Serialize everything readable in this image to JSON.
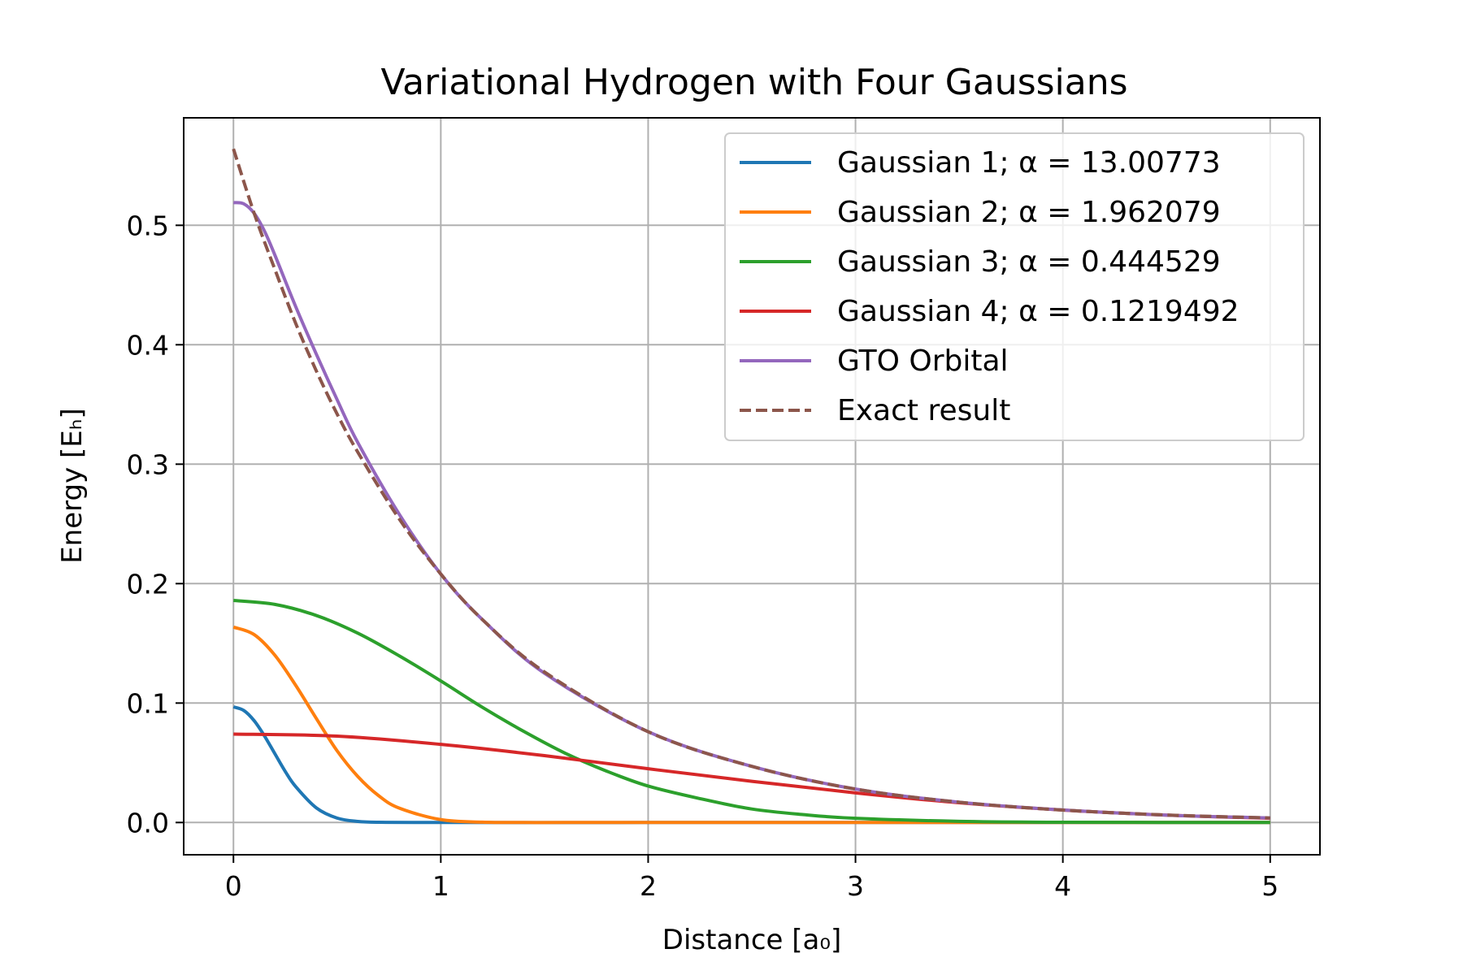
{
  "chart_data": {
    "type": "line",
    "title": "Variational Hydrogen with Four Gaussians",
    "xlabel": "Distance [a₀]",
    "ylabel": "Energy [Eₕ]",
    "xlim": [
      -0.24,
      5.24
    ],
    "ylim": [
      -0.027,
      0.59
    ],
    "xticks": [
      0,
      1,
      2,
      3,
      4,
      5
    ],
    "xtick_labels": [
      "0",
      "1",
      "2",
      "3",
      "4",
      "5"
    ],
    "yticks": [
      0.0,
      0.1,
      0.2,
      0.3,
      0.4,
      0.5
    ],
    "ytick_labels": [
      "0.0",
      "0.1",
      "0.2",
      "0.3",
      "0.4",
      "0.5"
    ],
    "grid": true,
    "legend_position": "top-right",
    "x_range": [
      0,
      5
    ],
    "series": [
      {
        "name": "Gaussian 1; α = 13.00773",
        "color": "#1f77b4",
        "style": "solid",
        "x": [
          0,
          0.05,
          0.1,
          0.15,
          0.2,
          0.25,
          0.3,
          0.4,
          0.5,
          0.6,
          0.7,
          1.0,
          2.0,
          3.0,
          4.0,
          5.0
        ],
        "y": [
          0.0968,
          0.0938,
          0.0852,
          0.0724,
          0.0575,
          0.0427,
          0.0301,
          0.0122,
          0.0037,
          0.0009,
          0.0002,
          0.0,
          0.0,
          0.0,
          0.0,
          0.0
        ]
      },
      {
        "name": "Gaussian 2; α = 1.962079",
        "color": "#ff7f0e",
        "style": "solid",
        "x": [
          0,
          0.1,
          0.2,
          0.3,
          0.4,
          0.5,
          0.6,
          0.7,
          0.8,
          1.0,
          1.2,
          1.4,
          1.6,
          2.0,
          3.0,
          4.0,
          5.0
        ],
        "y": [
          0.1636,
          0.1573,
          0.14,
          0.1149,
          0.087,
          0.06,
          0.0385,
          0.0225,
          0.012,
          0.0024,
          0.0003,
          0.0,
          0.0,
          0.0,
          0.0,
          0.0,
          0.0
        ]
      },
      {
        "name": "Gaussian 3; α = 0.444529",
        "color": "#2ca02c",
        "style": "solid",
        "x": [
          0,
          0.2,
          0.4,
          0.6,
          0.8,
          1.0,
          1.2,
          1.4,
          1.6,
          1.8,
          2.0,
          2.25,
          2.5,
          2.75,
          3.0,
          3.5,
          4.0,
          5.0
        ],
        "y": [
          0.1859,
          0.1826,
          0.1733,
          0.1585,
          0.1395,
          0.1185,
          0.0965,
          0.0763,
          0.058,
          0.043,
          0.0305,
          0.02,
          0.0113,
          0.0066,
          0.0035,
          0.001,
          0.0002,
          0.0
        ]
      },
      {
        "name": "Gaussian 4; α = 0.1219492",
        "color": "#d62728",
        "style": "solid",
        "x": [
          0,
          0.5,
          1.0,
          1.5,
          2.0,
          2.5,
          3.0,
          3.5,
          4.0,
          4.5,
          5.0
        ],
        "y": [
          0.074,
          0.0723,
          0.0654,
          0.056,
          0.045,
          0.0345,
          0.0248,
          0.0165,
          0.0104,
          0.0062,
          0.0035
        ]
      },
      {
        "name": "GTO Orbital",
        "color": "#9467bd",
        "style": "solid",
        "x": [
          0,
          0.05,
          0.1,
          0.15,
          0.2,
          0.3,
          0.4,
          0.5,
          0.6,
          0.8,
          1.0,
          1.2,
          1.5,
          2.0,
          2.5,
          3.0,
          3.5,
          4.0,
          4.5,
          5.0
        ],
        "y": [
          0.519,
          0.518,
          0.51,
          0.495,
          0.475,
          0.432,
          0.392,
          0.354,
          0.318,
          0.258,
          0.208,
          0.17,
          0.125,
          0.076,
          0.047,
          0.028,
          0.017,
          0.0105,
          0.0062,
          0.0038
        ]
      },
      {
        "name": "Exact result",
        "color": "#8c564b",
        "style": "dashed",
        "x": [
          0,
          0.1,
          0.2,
          0.3,
          0.4,
          0.5,
          0.6,
          0.8,
          1.0,
          1.2,
          1.5,
          2.0,
          2.5,
          3.0,
          3.5,
          4.0,
          4.5,
          5.0
        ],
        "y": [
          0.564,
          0.51,
          0.463,
          0.418,
          0.378,
          0.342,
          0.31,
          0.254,
          0.208,
          0.17,
          0.126,
          0.076,
          0.047,
          0.028,
          0.017,
          0.0104,
          0.0063,
          0.0038
        ]
      }
    ]
  }
}
